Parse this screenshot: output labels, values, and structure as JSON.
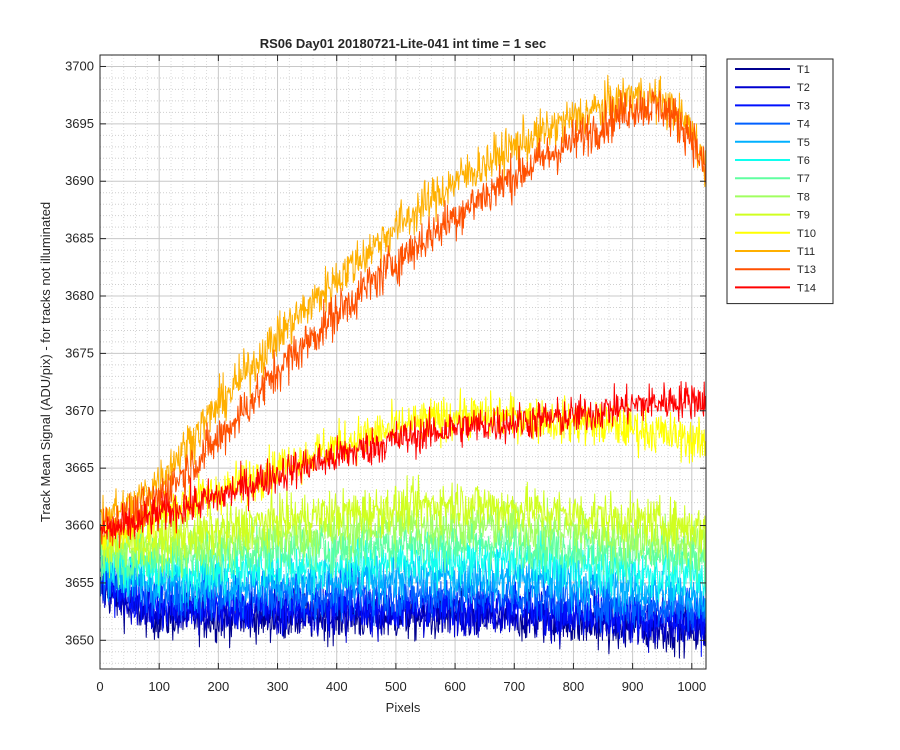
{
  "chart_data": {
    "type": "line",
    "title": "RS06 Day01 20180721-Lite-041 int time = 1 sec",
    "xlabel": "Pixels",
    "ylabel": "Track Mean Signal (ADU/pix) - for tracks not illuminated",
    "xlim": [
      0,
      1024
    ],
    "ylim": [
      3647.5,
      3701
    ],
    "xticks": [
      0,
      100,
      200,
      300,
      400,
      500,
      600,
      700,
      800,
      900,
      1000
    ],
    "yticks": [
      3650,
      3655,
      3660,
      3665,
      3670,
      3675,
      3680,
      3685,
      3690,
      3695,
      3700
    ],
    "grid": true,
    "minor_grid": true,
    "legend_position": "outside-top-right",
    "series": [
      {
        "name": "T1",
        "color": "#00008f",
        "noise": 1.6,
        "x": [
          0,
          50,
          100,
          200,
          300,
          400,
          500,
          600,
          700,
          800,
          900,
          1000,
          1024
        ],
        "y": [
          3654.5,
          3653.0,
          3652.0,
          3652.0,
          3652.0,
          3652.0,
          3652.0,
          3652.0,
          3652.0,
          3651.5,
          3651.0,
          3651.0,
          3650.5
        ]
      },
      {
        "name": "T2",
        "color": "#0000d0",
        "noise": 1.6,
        "x": [
          0,
          50,
          100,
          200,
          300,
          400,
          500,
          600,
          700,
          800,
          900,
          1000,
          1024
        ],
        "y": [
          3655.0,
          3653.5,
          3652.5,
          3652.5,
          3652.5,
          3652.5,
          3652.5,
          3652.5,
          3652.5,
          3652.0,
          3651.5,
          3651.5,
          3651.0
        ]
      },
      {
        "name": "T3",
        "color": "#0010ff",
        "noise": 1.6,
        "x": [
          0,
          50,
          100,
          200,
          300,
          400,
          500,
          600,
          700,
          800,
          900,
          1000,
          1024
        ],
        "y": [
          3655.5,
          3654.0,
          3653.0,
          3653.0,
          3653.0,
          3653.0,
          3653.0,
          3653.0,
          3653.0,
          3652.5,
          3652.0,
          3652.0,
          3651.5
        ]
      },
      {
        "name": "T4",
        "color": "#0060ff",
        "noise": 1.6,
        "x": [
          0,
          50,
          100,
          200,
          300,
          400,
          500,
          600,
          700,
          800,
          900,
          1000,
          1024
        ],
        "y": [
          3656.0,
          3655.0,
          3654.0,
          3654.0,
          3654.0,
          3654.0,
          3654.0,
          3654.0,
          3654.0,
          3653.5,
          3653.0,
          3653.0,
          3652.5
        ]
      },
      {
        "name": "T5",
        "color": "#00b0ff",
        "noise": 1.6,
        "x": [
          0,
          50,
          100,
          200,
          300,
          400,
          500,
          600,
          700,
          800,
          900,
          1000,
          1024
        ],
        "y": [
          3656.5,
          3655.5,
          3655.0,
          3655.0,
          3655.0,
          3655.0,
          3655.5,
          3655.5,
          3655.5,
          3655.0,
          3654.5,
          3654.0,
          3653.5
        ]
      },
      {
        "name": "T6",
        "color": "#10ffef",
        "noise": 1.6,
        "x": [
          0,
          50,
          100,
          200,
          300,
          400,
          500,
          600,
          700,
          800,
          900,
          1000,
          1024
        ],
        "y": [
          3657.0,
          3656.5,
          3656.0,
          3656.0,
          3656.5,
          3656.5,
          3657.0,
          3657.0,
          3657.0,
          3656.5,
          3656.0,
          3655.5,
          3655.0
        ]
      },
      {
        "name": "T7",
        "color": "#60ffa0",
        "noise": 1.6,
        "x": [
          0,
          50,
          100,
          200,
          300,
          400,
          500,
          600,
          700,
          800,
          900,
          1000,
          1024
        ],
        "y": [
          3657.5,
          3657.0,
          3657.0,
          3657.5,
          3658.0,
          3658.0,
          3658.5,
          3658.5,
          3658.5,
          3658.0,
          3657.5,
          3657.0,
          3656.5
        ]
      },
      {
        "name": "T8",
        "color": "#a0ff60",
        "noise": 1.6,
        "x": [
          0,
          50,
          100,
          200,
          300,
          400,
          500,
          600,
          700,
          800,
          900,
          1000,
          1024
        ],
        "y": [
          3658.0,
          3658.0,
          3658.0,
          3658.5,
          3659.0,
          3659.5,
          3660.0,
          3660.0,
          3660.0,
          3659.5,
          3659.0,
          3658.5,
          3658.0
        ]
      },
      {
        "name": "T9",
        "color": "#d0ff20",
        "noise": 1.6,
        "x": [
          0,
          50,
          100,
          200,
          300,
          400,
          500,
          600,
          700,
          800,
          900,
          1000,
          1024
        ],
        "y": [
          3658.5,
          3658.5,
          3659.0,
          3659.5,
          3660.5,
          3661.0,
          3661.5,
          3662.0,
          3661.5,
          3661.0,
          3660.5,
          3660.0,
          3659.5
        ]
      },
      {
        "name": "T10",
        "color": "#ffff00",
        "noise": 1.5,
        "x": [
          0,
          50,
          100,
          200,
          300,
          400,
          500,
          600,
          700,
          800,
          900,
          1000,
          1024
        ],
        "y": [
          3659.0,
          3660.0,
          3661.0,
          3663.0,
          3665.0,
          3667.0,
          3668.5,
          3669.5,
          3669.5,
          3669.0,
          3668.5,
          3667.5,
          3667.0
        ]
      },
      {
        "name": "T11",
        "color": "#ffb000",
        "noise": 1.5,
        "x": [
          0,
          50,
          100,
          200,
          300,
          400,
          500,
          600,
          700,
          800,
          900,
          950,
          1000,
          1024
        ],
        "y": [
          3661.0,
          3661.5,
          3664.0,
          3670.5,
          3676.5,
          3681.5,
          3686.0,
          3690.0,
          3693.0,
          3695.5,
          3697.5,
          3697.0,
          3694.5,
          3691.0
        ]
      },
      {
        "name": "T13",
        "color": "#ff5000",
        "noise": 1.5,
        "x": [
          0,
          50,
          100,
          200,
          300,
          400,
          500,
          600,
          700,
          800,
          900,
          950,
          1000,
          1024
        ],
        "y": [
          3660.0,
          3660.5,
          3662.5,
          3667.5,
          3673.5,
          3678.5,
          3683.0,
          3687.0,
          3690.5,
          3693.5,
          3696.5,
          3696.5,
          3694.0,
          3690.5
        ]
      },
      {
        "name": "T14",
        "color": "#ff0000",
        "noise": 1.3,
        "x": [
          0,
          50,
          100,
          200,
          300,
          400,
          500,
          600,
          700,
          800,
          900,
          1000,
          1024
        ],
        "y": [
          3659.5,
          3660.0,
          3661.0,
          3662.5,
          3664.5,
          3666.0,
          3667.5,
          3668.5,
          3669.0,
          3669.5,
          3670.5,
          3671.0,
          3671.0
        ]
      }
    ]
  }
}
